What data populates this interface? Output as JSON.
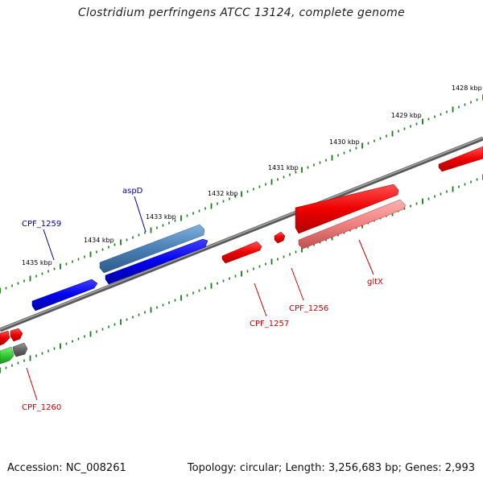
{
  "title": "Clostridium perfringens ATCC 13124, complete genome",
  "footer": {
    "accession": "Accession: NC_008261",
    "topology": "Topology: circular; Length: 3,256,683 bp; Genes: 2,993"
  },
  "colors": {
    "backbone": "#7a7a7a",
    "forward_gene": "#ee0000",
    "reverse_gene": "#0000ee",
    "rna_gene": "#4a7fb5",
    "pseudo_gene": "#f08080",
    "green_feature": "#33cc33",
    "gray_feature": "#666666",
    "tick": "#1a7a1a",
    "forward_label": "#cc0000",
    "reverse_label": "#000099"
  },
  "scale_labels": [
    "1428 kbp",
    "1429 kbp",
    "1430 kbp",
    "1431 kbp",
    "1432 kbp",
    "1433 kbp",
    "1434 kbp",
    "1435 kbp"
  ],
  "gene_labels": [
    {
      "name": "aspD",
      "strand": "reverse"
    },
    {
      "name": "CPF_1259",
      "strand": "reverse"
    },
    {
      "name": "CPF_1257",
      "strand": "forward"
    },
    {
      "name": "CPF_1256",
      "strand": "forward"
    },
    {
      "name": "gltX",
      "strand": "forward"
    },
    {
      "name": "CPF_1260",
      "strand": "forward"
    }
  ]
}
